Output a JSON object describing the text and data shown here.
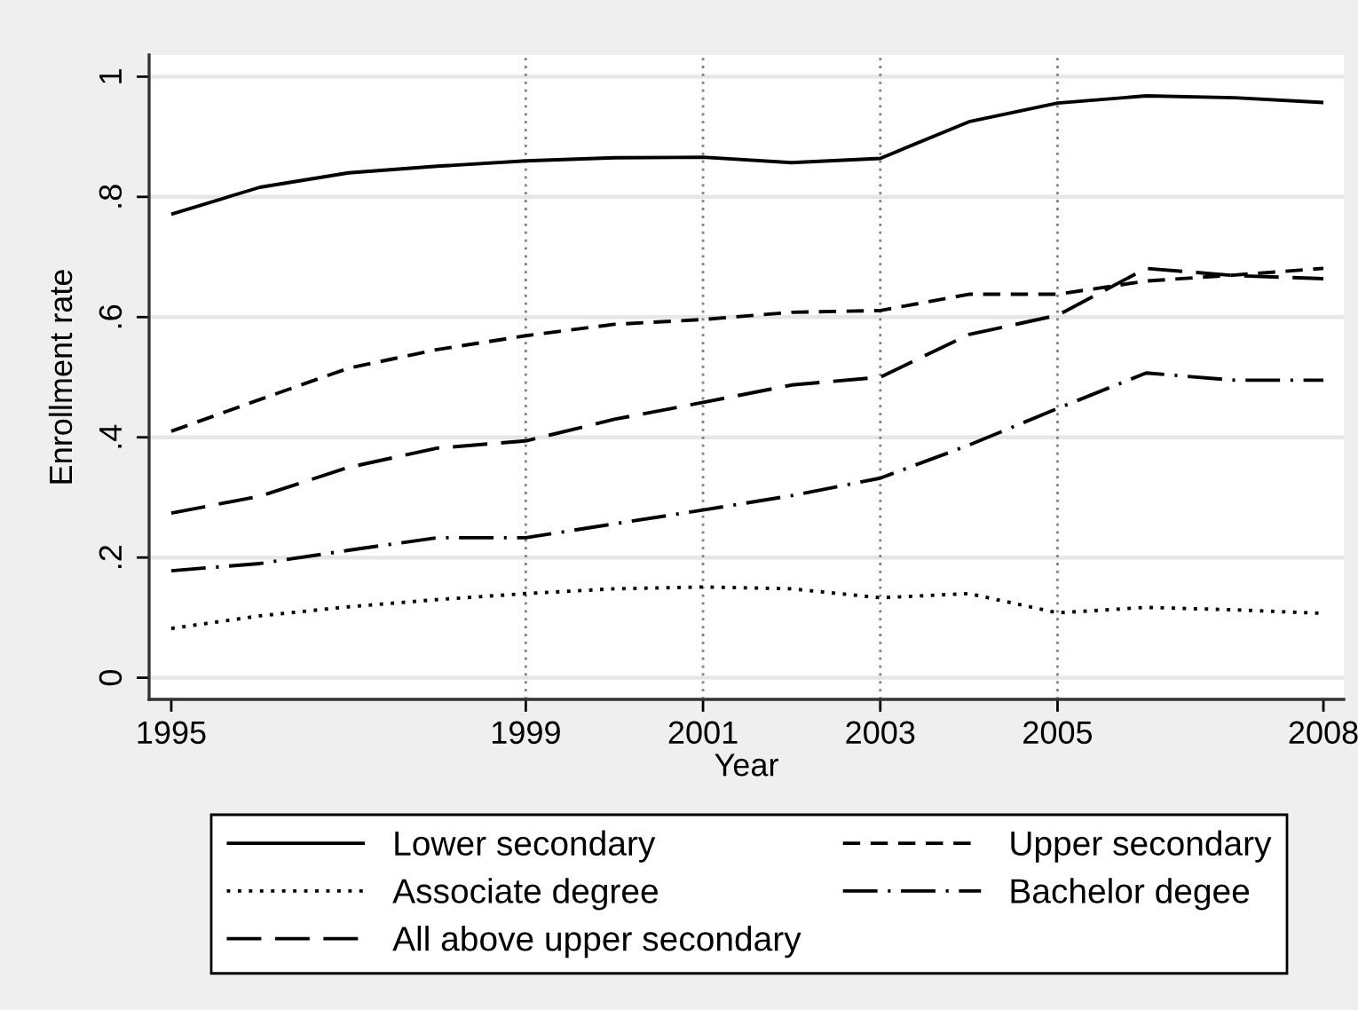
{
  "chart_data": {
    "type": "line",
    "xlabel": "Year",
    "ylabel": "Enrollment rate",
    "x": [
      1995,
      1996,
      1997,
      1998,
      1999,
      2000,
      2001,
      2002,
      2003,
      2004,
      2005,
      2006,
      2007,
      2008
    ],
    "xlim": [
      1994.75,
      2008.23
    ],
    "xticks": [
      1995,
      1999,
      2001,
      2003,
      2005,
      2008
    ],
    "ylim": [
      -0.036,
      1.036
    ],
    "yticks": [
      0,
      {
        "value": 0.2,
        "label": ".2"
      },
      {
        "value": 0.4,
        "label": ".4"
      },
      {
        "value": 0.6,
        "label": ".6"
      },
      {
        "value": 0.8,
        "label": ".8"
      },
      1
    ],
    "grid": "y",
    "legend": "bottom",
    "series": [
      {
        "name": "Lower secondary",
        "color": "#000000",
        "line_style": "solid",
        "values": [
          0.771,
          0.816,
          0.84,
          0.851,
          0.86,
          0.865,
          0.866,
          0.857,
          0.864,
          0.925,
          0.956,
          0.968,
          0.965,
          0.957
        ]
      },
      {
        "name": "Upper secondary",
        "color": "#000000",
        "line_style": "dashed",
        "values": [
          0.41,
          0.463,
          0.515,
          0.546,
          0.569,
          0.588,
          0.596,
          0.608,
          0.611,
          0.638,
          0.638,
          0.66,
          0.67,
          0.681
        ]
      },
      {
        "name": "Associate degree",
        "color": "#000000",
        "line_style": "dotted",
        "values": [
          0.082,
          0.103,
          0.118,
          0.13,
          0.14,
          0.148,
          0.151,
          0.148,
          0.133,
          0.14,
          0.108,
          0.117,
          0.113,
          0.107
        ]
      },
      {
        "name": "Bachelor degee",
        "color": "#000000",
        "line_style": "dashdot",
        "values": [
          0.178,
          0.19,
          0.212,
          0.233,
          0.233,
          0.256,
          0.279,
          0.303,
          0.332,
          0.387,
          0.448,
          0.507,
          0.495,
          0.495
        ]
      },
      {
        "name": "All above upper secondary",
        "color": "#000000",
        "line_style": "longdash",
        "values": [
          0.274,
          0.302,
          0.35,
          0.382,
          0.394,
          0.43,
          0.458,
          0.487,
          0.5,
          0.571,
          0.603,
          0.681,
          0.669,
          0.664
        ]
      }
    ],
    "ref_lines": [
      {
        "axis": "x",
        "value": 1999,
        "color": "#7f7f7f",
        "line_style": "dotted"
      },
      {
        "axis": "x",
        "value": 2001,
        "color": "#7f7f7f",
        "line_style": "dotted"
      },
      {
        "axis": "x",
        "value": 2003,
        "color": "#7f7f7f",
        "line_style": "dotted"
      },
      {
        "axis": "x",
        "value": 2005,
        "color": "#7f7f7f",
        "line_style": "dotted"
      }
    ]
  }
}
